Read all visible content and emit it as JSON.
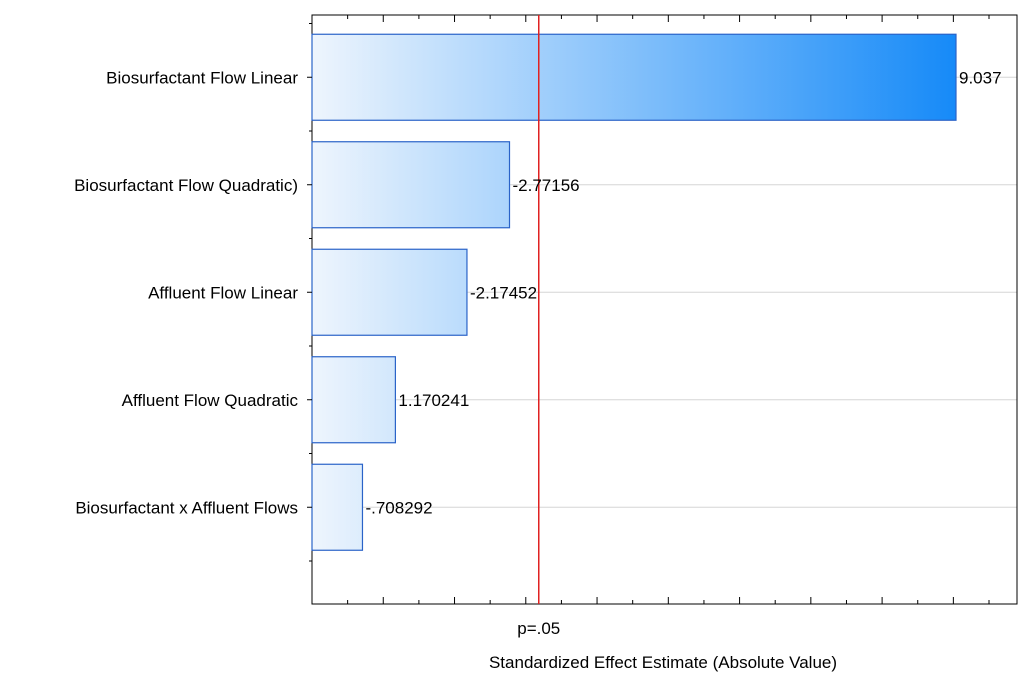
{
  "chart_data": {
    "type": "bar",
    "orientation": "horizontal",
    "categories": [
      "Biosurfactant Flow Linear",
      "Biosurfactant Flow Quadratic)",
      "Affluent Flow Linear",
      "Affluent Flow Quadratic",
      "Biosurfactant x Affluent Flows"
    ],
    "values": [
      9.037,
      2.77156,
      2.17452,
      1.170241,
      0.708292
    ],
    "value_labels": [
      "9.037",
      "-2.77156",
      "-2.17452",
      "1.170241",
      "-.708292"
    ],
    "xlabel": "Standardized Effect Estimate (Absolute Value)",
    "reference_line": {
      "value": 3.182,
      "label": "p=.05",
      "color": "#e02020"
    },
    "xlim": [
      0,
      10
    ],
    "grid": true,
    "bar_gradient": [
      "#eef5fd",
      "#168af8"
    ],
    "bar_border_color": "#2a63c8"
  }
}
